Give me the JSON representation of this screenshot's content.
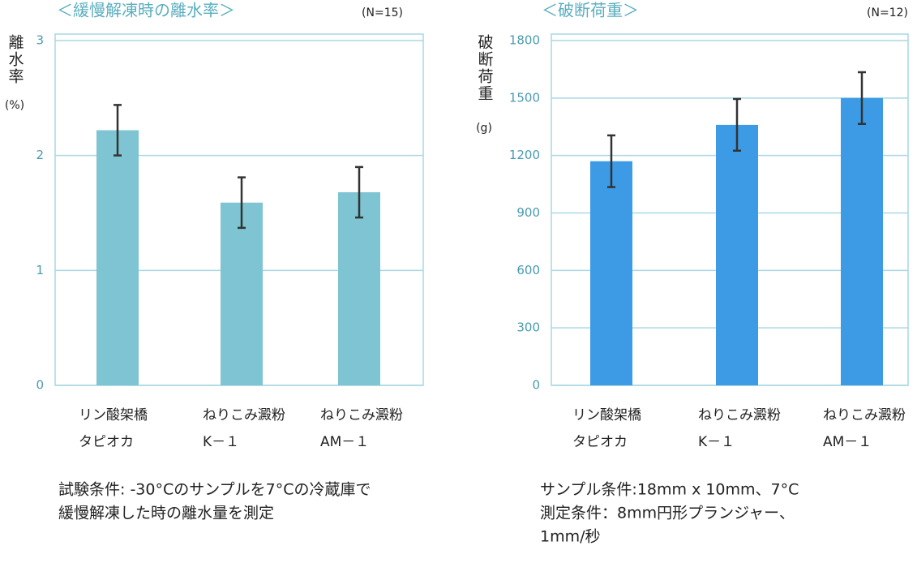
{
  "chart_data": [
    {
      "type": "bar",
      "title": "＜緩慢解凍時の離水率＞",
      "subtitle": "(N=15)",
      "y_label": "離水率",
      "y_unit": "(%)",
      "categories": [
        [
          "リン酸架橋",
          "タピオカ"
        ],
        [
          "ねりこみ澱粉",
          "K－１"
        ],
        [
          "ねりこみ澱粉",
          "AM－１"
        ]
      ],
      "values": [
        2.22,
        1.59,
        1.68
      ],
      "errors": [
        0.22,
        0.22,
        0.22
      ],
      "color": "#7ec4d2",
      "ylim": [
        0,
        3
      ],
      "yticks": [
        0,
        1,
        2,
        3
      ],
      "grid": true,
      "notes": [
        "試験条件: -30°Cのサンプルを7°Cの冷蔵庫で",
        "緩慢解凍した時の離水量を測定"
      ]
    },
    {
      "type": "bar",
      "title": "＜破断荷重＞",
      "subtitle": "(N=12)",
      "y_label": "破断荷重",
      "y_unit": "(g)",
      "categories": [
        [
          "リン酸架橋",
          "タピオカ"
        ],
        [
          "ねりこみ澱粉",
          "K－１"
        ],
        [
          "ねりこみ澱粉",
          "AM－１"
        ]
      ],
      "values": [
        1170,
        1360,
        1500
      ],
      "errors": [
        135,
        135,
        135
      ],
      "color": "#3d9be6",
      "ylim": [
        0,
        1800
      ],
      "yticks": [
        0,
        300,
        600,
        900,
        1200,
        1500,
        1800
      ],
      "grid": true,
      "notes": [
        "サンプル条件:18mm x 10mm、7°C",
        "測定条件：8mm円形プランジャー、",
        "1mm/秒"
      ]
    }
  ]
}
